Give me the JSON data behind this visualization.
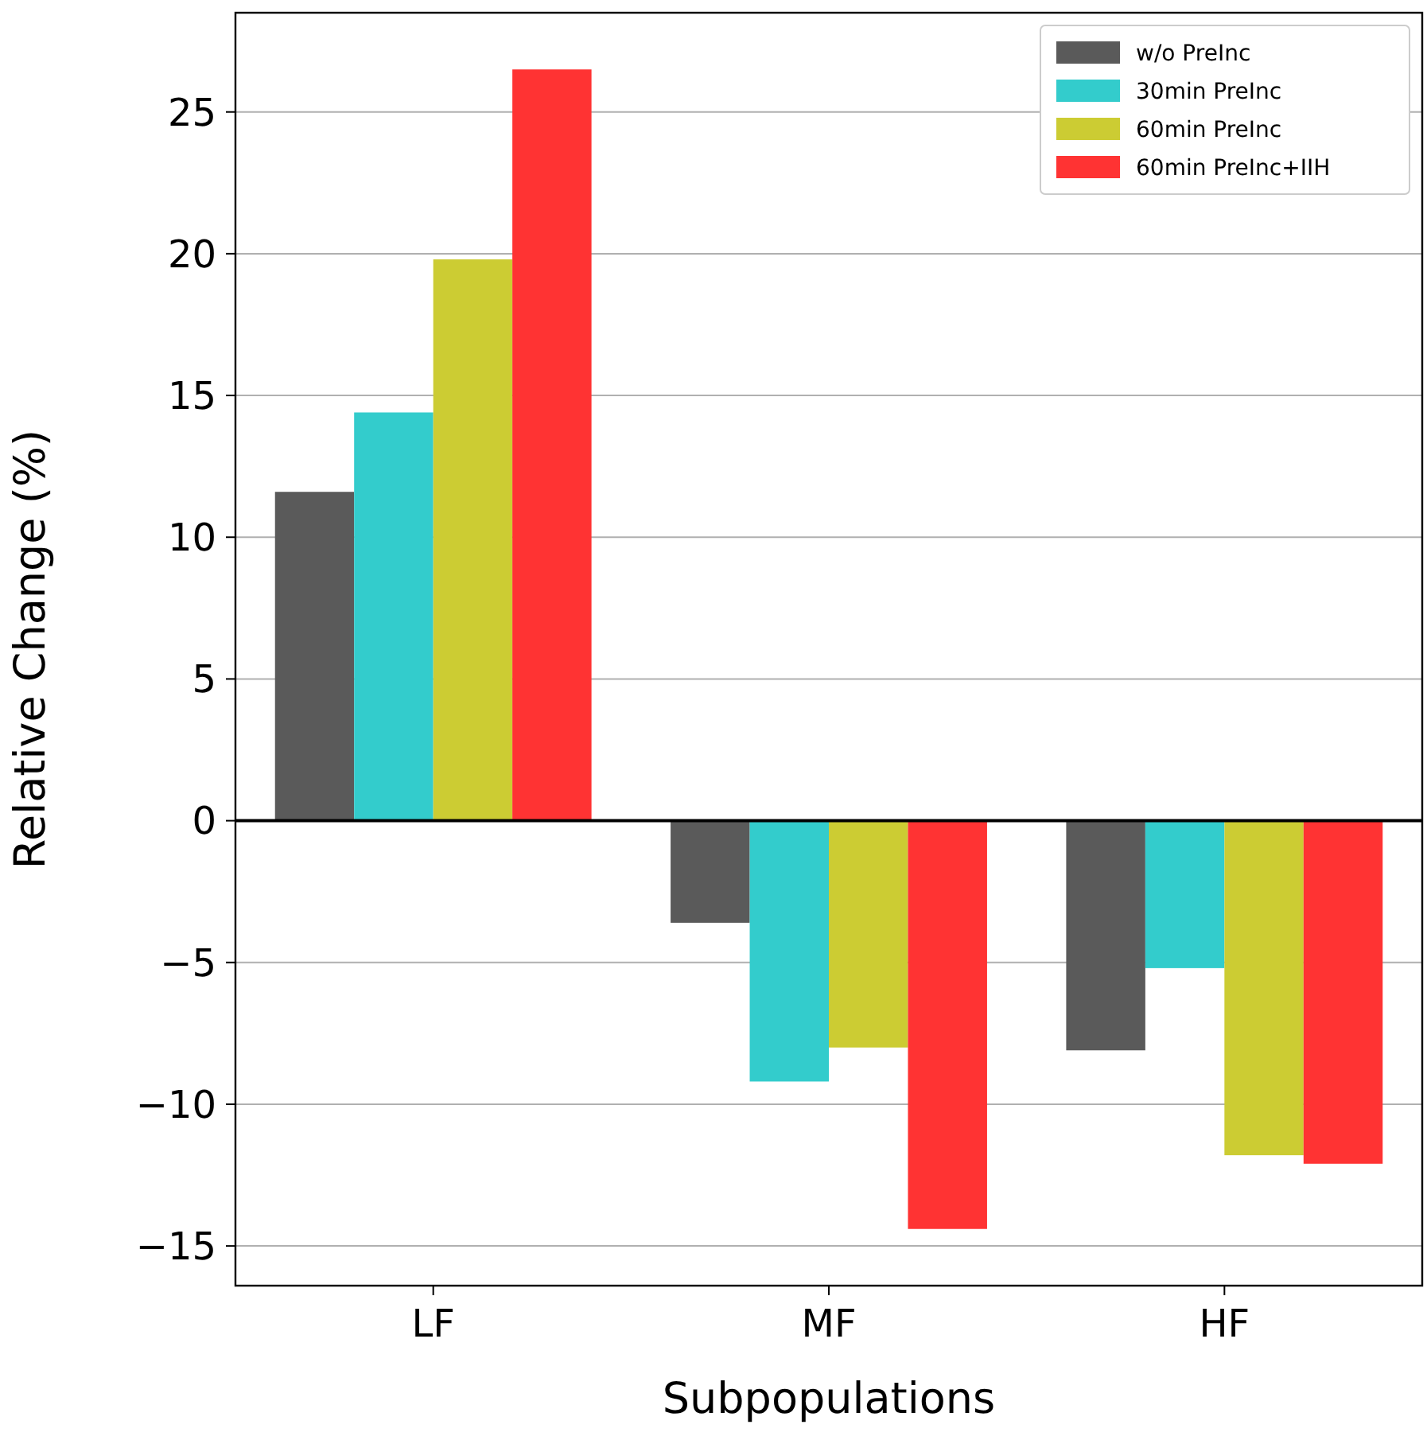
{
  "chart_data": {
    "type": "bar",
    "xlabel": "Subpopulations",
    "ylabel": "Relative Change (%)",
    "categories": [
      "LF",
      "MF",
      "HF"
    ],
    "series": [
      {
        "name": "w/o PreInc",
        "color": "#5a5a5a",
        "values": [
          11.6,
          -3.6,
          -8.1
        ]
      },
      {
        "name": "30min PreInc",
        "color": "#33cccc",
        "values": [
          14.4,
          -9.2,
          -5.2
        ]
      },
      {
        "name": "60min PreInc",
        "color": "#cccc33",
        "values": [
          19.8,
          -8.0,
          -11.8
        ]
      },
      {
        "name": "60min PreInc+IIH",
        "color": "#ff3333",
        "values": [
          26.5,
          -14.4,
          -12.1
        ]
      }
    ],
    "ylim": [
      -16.4,
      28.5
    ],
    "yticks": [
      {
        "value": -15,
        "label": "−15"
      },
      {
        "value": -10,
        "label": "−10"
      },
      {
        "value": -5,
        "label": "−5"
      },
      0,
      5,
      10,
      15,
      20,
      25
    ],
    "grid": "y",
    "legend": "top right",
    "ref_lines": [
      {
        "axis": "y",
        "value": 0,
        "color": "#000000"
      }
    ]
  }
}
